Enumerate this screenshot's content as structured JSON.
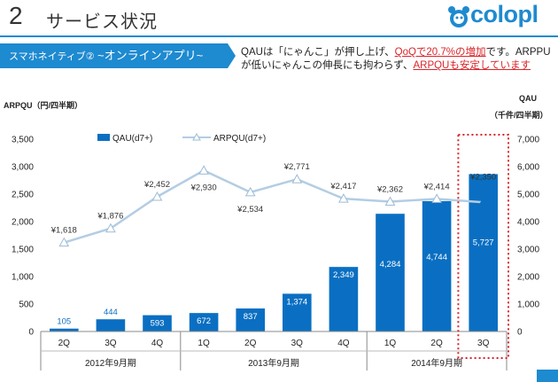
{
  "header": {
    "page_number": "2",
    "title": "サービス状況",
    "logo_text": "colopl"
  },
  "section_label": {
    "sub": "スマホネイティブ②",
    "main": "~オンラインアプリ~"
  },
  "headline": {
    "part1": "QAUは「にゃんこ」が押し上げ、",
    "highlight1": "QoQで20.7%の増加",
    "part2": "です。ARPPUが低いにゃんこの伸長にも拘わらず、",
    "highlight2": "ARPQUも安定しています"
  },
  "colors": {
    "accent": "#1e8ad0",
    "bar": "#0a6fc2",
    "line": "#b3cde3",
    "highlight": "#d9252a"
  },
  "chart_data": {
    "type": "bar",
    "left_axis_title": "ARPQU（円/四半期）",
    "right_axis_title_1": "QAU",
    "right_axis_title_2": "（千件/四半期）",
    "left_ticks": [
      "3,500",
      "3,000",
      "2,500",
      "2,000",
      "1,500",
      "1,000",
      "500",
      "0"
    ],
    "right_ticks": [
      "7,000",
      "6,000",
      "5,000",
      "4,000",
      "3,000",
      "2,000",
      "1,000",
      "0"
    ],
    "ylim_left": [
      0,
      3500
    ],
    "ylim_right": [
      0,
      7000
    ],
    "categories": [
      "2Q",
      "3Q",
      "4Q",
      "1Q",
      "2Q",
      "3Q",
      "4Q",
      "1Q",
      "2Q",
      "3Q"
    ],
    "groups": [
      {
        "label": "2012年9月期",
        "span": 3
      },
      {
        "label": "2013年9月期",
        "span": 4
      },
      {
        "label": "2014年9月期",
        "span": 3
      }
    ],
    "series": [
      {
        "name": "QAU(d7+)",
        "kind": "bar",
        "axis": "right",
        "values": [
          105,
          444,
          593,
          672,
          837,
          1374,
          2349,
          4284,
          4744,
          5727
        ],
        "labels": [
          "105",
          "444",
          "593",
          "672",
          "837",
          "1,374",
          "2,349",
          "4,284",
          "4,744",
          "5,727"
        ]
      },
      {
        "name": "ARPQU(d7+)",
        "kind": "line",
        "axis": "left",
        "values": [
          1618,
          1876,
          2452,
          2930,
          2534,
          2771,
          2417,
          2362,
          2414,
          2350
        ],
        "labels": [
          "¥1,618",
          "¥1,876",
          "¥2,452",
          "¥2,930",
          "¥2,534",
          "¥2,771",
          "¥2,417",
          "¥2,362",
          "¥2,414",
          "¥2,350"
        ]
      }
    ],
    "highlight_index": 9,
    "grid": false,
    "legend": "top-left"
  }
}
